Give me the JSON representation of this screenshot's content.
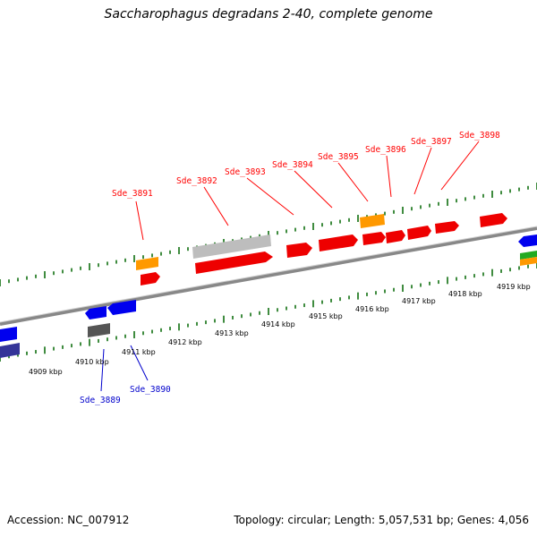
{
  "title": "Saccharophagus degradans 2-40, complete genome",
  "footer": {
    "accession": "Accession: NC_007912",
    "summary": "Topology: circular; Length: 5,057,531 bp; Genes: 4,056"
  },
  "colors": {
    "forward_cds": "#ff0000",
    "reverse_cds": "#0000ee",
    "orange_feature": "#ff9900",
    "gray_feature": "#bbbbbb",
    "dark_feature": "#555555",
    "green_feature": "#22aa22",
    "backbone": "#888888",
    "tick": "#006600"
  },
  "kbp_labels": [
    "4909 kbp",
    "4910 kbp",
    "4911 kbp",
    "4912 kbp",
    "4913 kbp",
    "4914 kbp",
    "4915 kbp",
    "4916 kbp",
    "4917 kbp",
    "4918 kbp",
    "4919 kbp"
  ],
  "genes_top": [
    "Sde_3891",
    "Sde_3892",
    "Sde_3893",
    "Sde_3894",
    "Sde_3895",
    "Sde_3896",
    "Sde_3897",
    "Sde_3898"
  ],
  "genes_bottom": [
    "Sde_3889",
    "Sde_3890"
  ]
}
